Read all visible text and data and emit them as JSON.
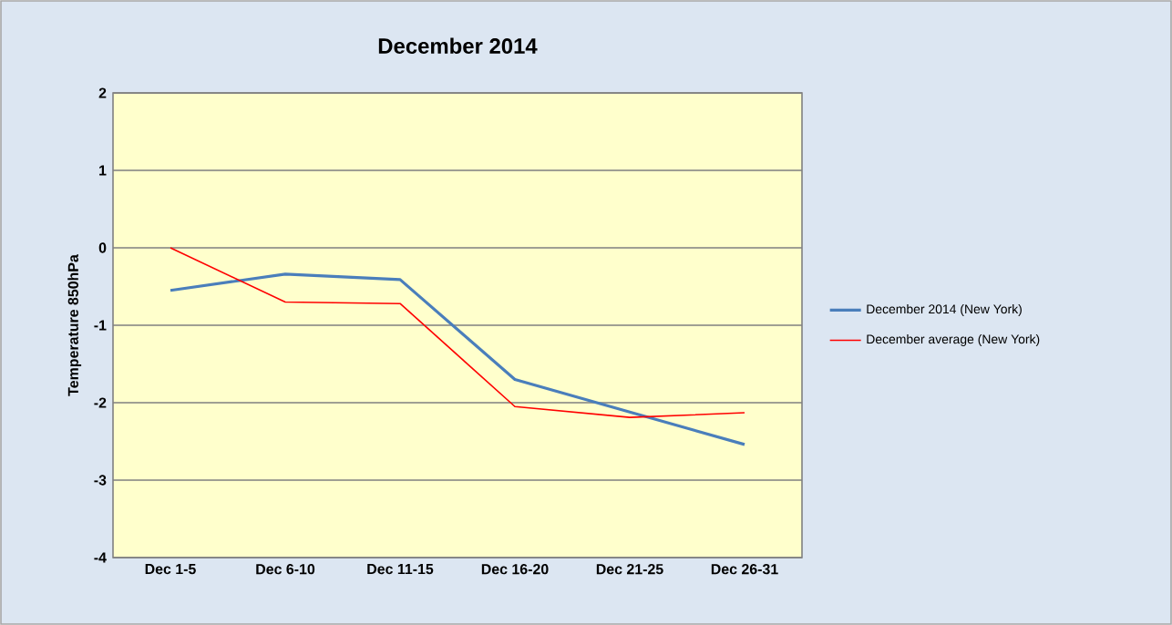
{
  "chart_data": {
    "type": "line",
    "title": "December 2014",
    "ylabel": "Temperature 850hPa",
    "categories": [
      "Dec 1-5",
      "Dec 6-10",
      "Dec 11-15",
      "Dec 16-20",
      "Dec 21-25",
      "Dec 26-31"
    ],
    "series": [
      {
        "name": "December 2014 (New York)",
        "color": "#4a7ebb",
        "values": [
          -0.55,
          -0.34,
          -0.41,
          -1.7,
          -2.12,
          -2.54
        ]
      },
      {
        "name": "December average (New York)",
        "color": "#ff0000",
        "values": [
          0,
          -0.7,
          -0.72,
          -2.05,
          -2.19,
          -2.13
        ]
      }
    ],
    "ylim": [
      -4,
      2
    ],
    "yticks": [
      -4,
      -3,
      -2,
      -1,
      0,
      1,
      2
    ],
    "grid": "y",
    "legend": "right"
  }
}
